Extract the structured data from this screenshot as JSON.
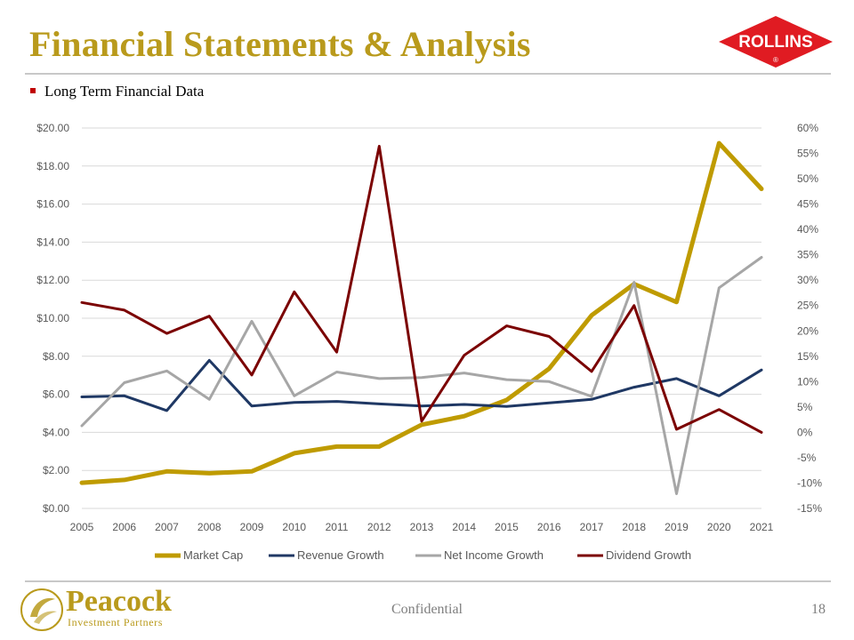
{
  "header": {
    "title": "Financial Statements & Analysis",
    "logo_text": "ROLLINS",
    "logo_mark": "®"
  },
  "bullet": "Long Term Financial Data",
  "footer": {
    "confidential": "Confidential",
    "page_number": "18",
    "brand_name": "Peacock",
    "brand_sub": "Investment Partners"
  },
  "colors": {
    "title": "#b99a1c",
    "market_cap": "#bf9b00",
    "revenue_growth": "#1f3864",
    "net_income_growth": "#a6a6a6",
    "dividend_growth": "#7b0000",
    "logo": "#e01b22"
  },
  "chart_data": {
    "type": "line",
    "categories": [
      "2005",
      "2006",
      "2007",
      "2008",
      "2009",
      "2010",
      "2011",
      "2012",
      "2013",
      "2014",
      "2015",
      "2016",
      "2017",
      "2018",
      "2019",
      "2020",
      "2021"
    ],
    "left_axis": {
      "min": 0,
      "max": 20,
      "step": 2,
      "ticks": [
        "$0.00",
        "$2.00",
        "$4.00",
        "$6.00",
        "$8.00",
        "$10.00",
        "$12.00",
        "$14.00",
        "$16.00",
        "$18.00",
        "$20.00"
      ]
    },
    "right_axis": {
      "min": -15,
      "max": 60,
      "step": 5,
      "ticks": [
        "-15%",
        "-10%",
        "-5%",
        "0%",
        "5%",
        "10%",
        "15%",
        "20%",
        "25%",
        "30%",
        "35%",
        "40%",
        "45%",
        "50%",
        "55%",
        "60%"
      ]
    },
    "grid": true,
    "legend_position": "bottom",
    "series": [
      {
        "name": "Market Cap",
        "axis": "left",
        "color_key": "market_cap",
        "width": 5,
        "values": [
          1.35,
          1.5,
          1.95,
          1.85,
          1.95,
          2.9,
          3.25,
          3.25,
          4.4,
          4.85,
          5.7,
          7.35,
          10.15,
          11.8,
          10.85,
          19.2,
          16.8
        ]
      },
      {
        "name": "Revenue Growth",
        "axis": "right",
        "color_key": "revenue_growth",
        "width": 3,
        "values": [
          7.0,
          7.2,
          4.3,
          14.2,
          5.2,
          5.9,
          6.1,
          5.6,
          5.2,
          5.5,
          5.1,
          5.8,
          6.5,
          8.9,
          10.6,
          7.2,
          12.3
        ]
      },
      {
        "name": "Net Income Growth",
        "axis": "right",
        "color_key": "net_income_growth",
        "width": 3,
        "values": [
          1.3,
          9.8,
          12.1,
          6.5,
          21.9,
          7.2,
          11.9,
          10.6,
          10.8,
          11.7,
          10.4,
          10.0,
          7.1,
          29.6,
          -12.1,
          28.5,
          34.5
        ]
      },
      {
        "name": "Dividend Growth",
        "axis": "right",
        "color_key": "dividend_growth",
        "width": 3,
        "values": [
          25.6,
          24.1,
          19.5,
          22.9,
          11.3,
          27.7,
          15.8,
          56.4,
          2.2,
          15.2,
          21.0,
          18.9,
          12.0,
          25.0,
          0.6,
          4.5,
          0.0
        ]
      }
    ]
  }
}
